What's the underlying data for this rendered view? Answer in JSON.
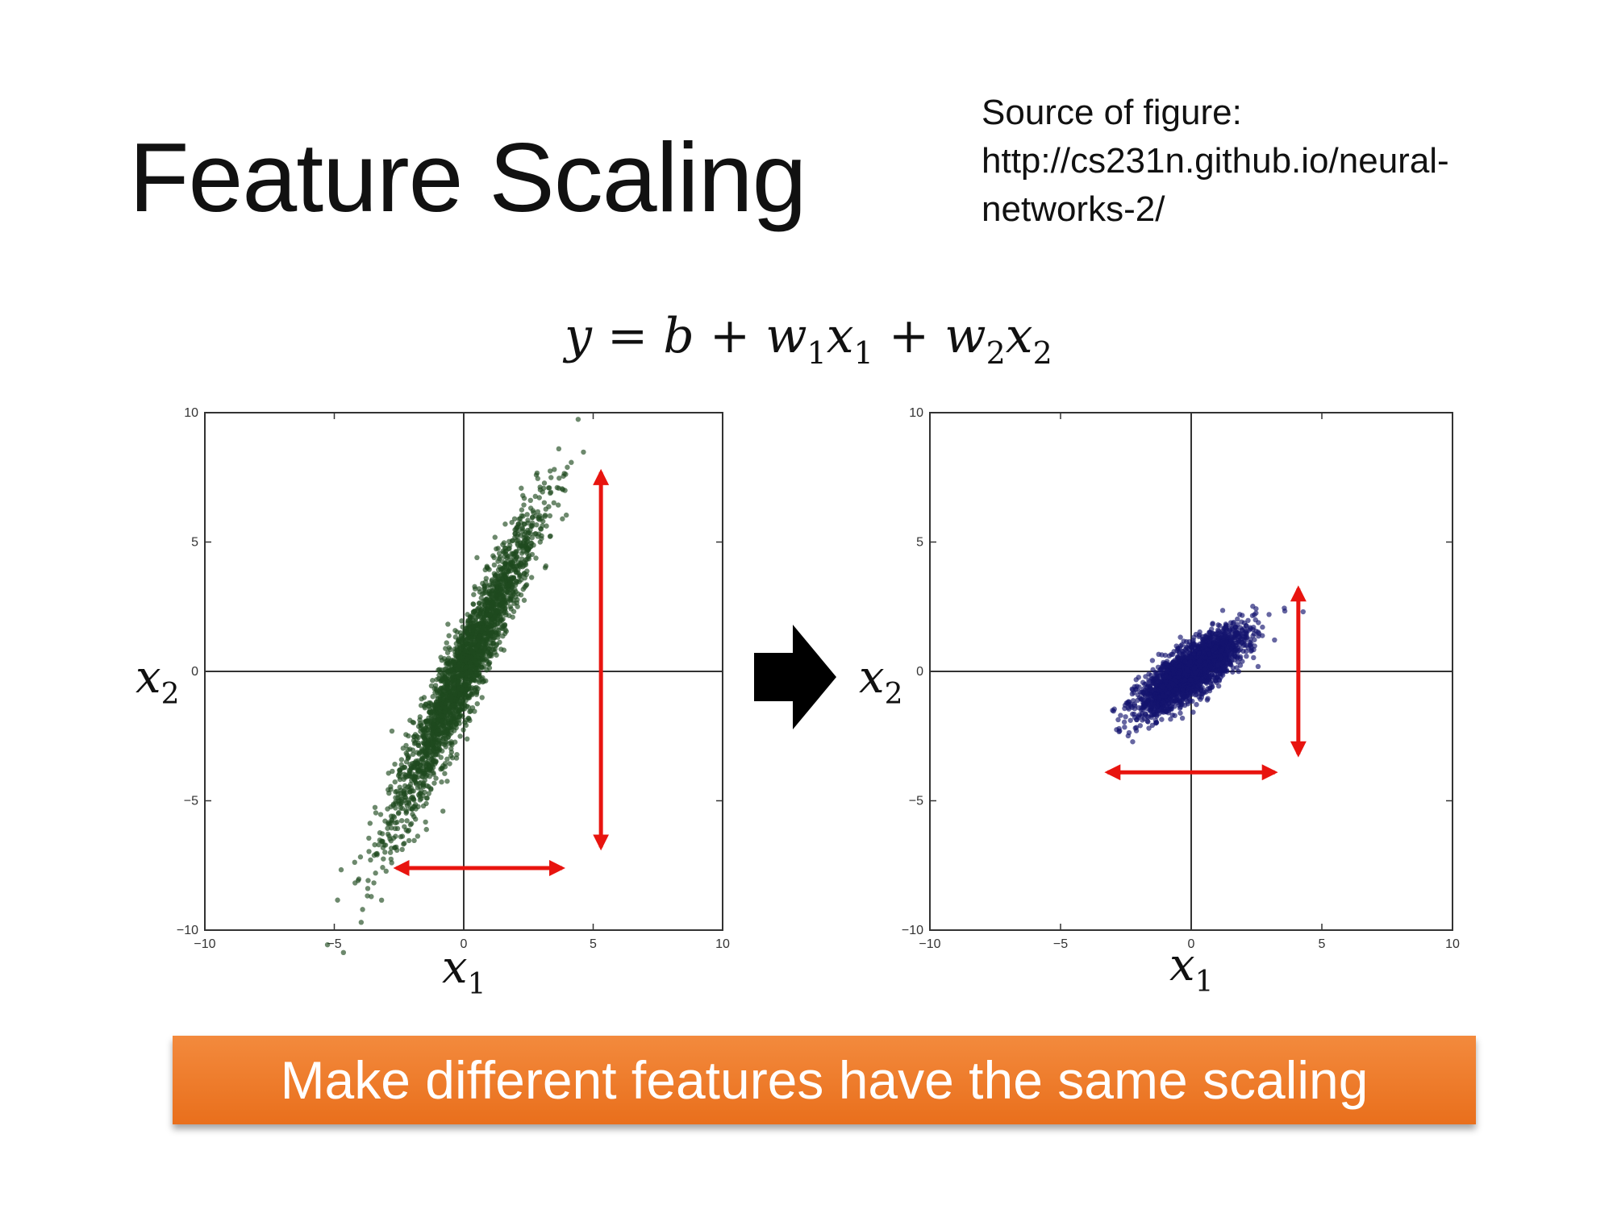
{
  "slide": {
    "title": "Feature Scaling",
    "source_note": [
      "Source of figure:",
      "http://cs231n.github.io/neural-",
      "networks-2/"
    ],
    "equation": {
      "y": "y",
      "eq": "=",
      "b": "b",
      "plus": "+",
      "w": "w",
      "x": "x",
      "sub1": "1",
      "sub2": "2"
    },
    "axis_vars": {
      "x1": "x",
      "x1_sub": "1",
      "x2": "x",
      "x2_sub": "2"
    },
    "banner": "Make different features have the same scaling",
    "colors": {
      "banner": "#ef7d2c",
      "left_points": "#1f4a1f",
      "right_points": "#14146e",
      "arrows": "#e8140f"
    }
  },
  "chart_data": [
    {
      "type": "scatter",
      "name": "before-scaling",
      "xlim": [
        -10,
        10
      ],
      "ylim": [
        -10,
        10
      ],
      "ticks": [
        -10,
        -5,
        0,
        5,
        10
      ],
      "tick_labels": [
        "−10",
        "−5",
        "0",
        "5",
        "10"
      ],
      "grid": false,
      "distribution": {
        "x_std": 1.4,
        "y_std": 3.0,
        "correlation": 0.95,
        "points": 2500
      },
      "arrows": [
        {
          "orientation": "vertical",
          "x": 5.3,
          "from": -6.8,
          "to": 7.7
        },
        {
          "orientation": "horizontal",
          "y": -7.6,
          "from": -2.6,
          "to": 3.8
        }
      ]
    },
    {
      "type": "scatter",
      "name": "after-scaling",
      "xlim": [
        -10,
        10
      ],
      "ylim": [
        -10,
        10
      ],
      "ticks": [
        -10,
        -5,
        0,
        5,
        10
      ],
      "tick_labels": [
        "−10",
        "−5",
        "0",
        "5",
        "10"
      ],
      "grid": false,
      "distribution": {
        "x_std": 1.0,
        "y_std": 0.8,
        "correlation": 0.8,
        "points": 2500
      },
      "arrows": [
        {
          "orientation": "vertical",
          "x": 4.1,
          "from": -3.2,
          "to": 3.2
        },
        {
          "orientation": "horizontal",
          "y": -3.9,
          "from": -3.2,
          "to": 3.2
        }
      ]
    }
  ]
}
